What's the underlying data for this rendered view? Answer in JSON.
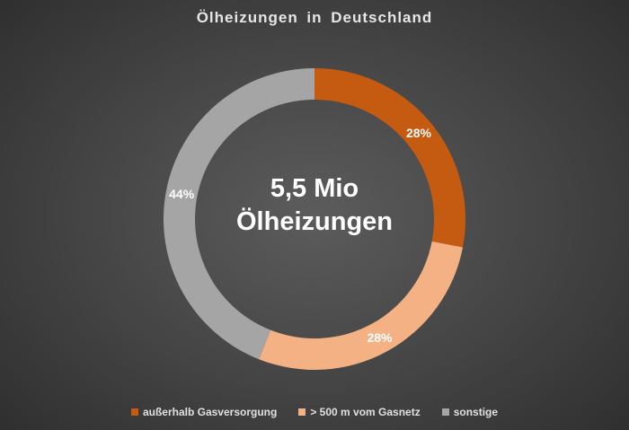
{
  "chart_data": {
    "type": "pie",
    "variant": "donut",
    "title": "Ölheizungen in Deutschland",
    "center_text": [
      "5,5 Mio",
      "Ölheizungen"
    ],
    "series": [
      {
        "name": "außerhalb Gasversorgung",
        "value": 28,
        "label": "28%",
        "color": "#c55a11"
      },
      {
        "name": "> 500 m vom Gasnetz",
        "value": 28,
        "label": "28%",
        "color": "#f4b183"
      },
      {
        "name": "sonstige",
        "value": 44,
        "label": "44%",
        "color": "#a5a5a5"
      }
    ],
    "legend_position": "bottom",
    "start": "top",
    "direction": "clockwise"
  }
}
